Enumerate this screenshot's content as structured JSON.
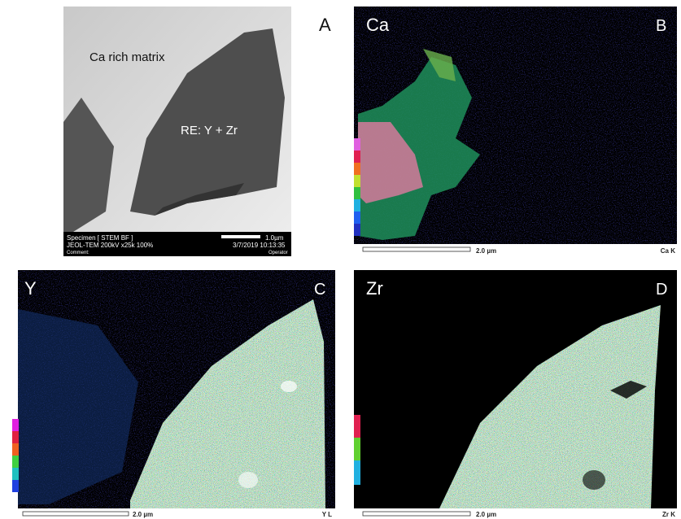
{
  "panel_a": {
    "letter": "A",
    "annotations": [
      "Ca rich matrix",
      "RE: Y + Zr"
    ],
    "info": {
      "specimen": "Specimen [ STEM BF ]",
      "instrument": "JEOL-TEM 200kV x25k 100%",
      "comment": "Comment:",
      "scale": "1.0µm",
      "datetime": "3/7/2019 10:13:35",
      "operator": "Operator"
    }
  },
  "panel_b": {
    "letter": "B",
    "element": "Ca",
    "scale": "2.0 µm",
    "line": "Ca K"
  },
  "panel_c": {
    "letter": "C",
    "element": "Y",
    "scale": "2.0 µm",
    "line": "Y L"
  },
  "panel_d": {
    "letter": "D",
    "element": "Zr",
    "scale": "2.0 µm",
    "line": "Zr K"
  }
}
